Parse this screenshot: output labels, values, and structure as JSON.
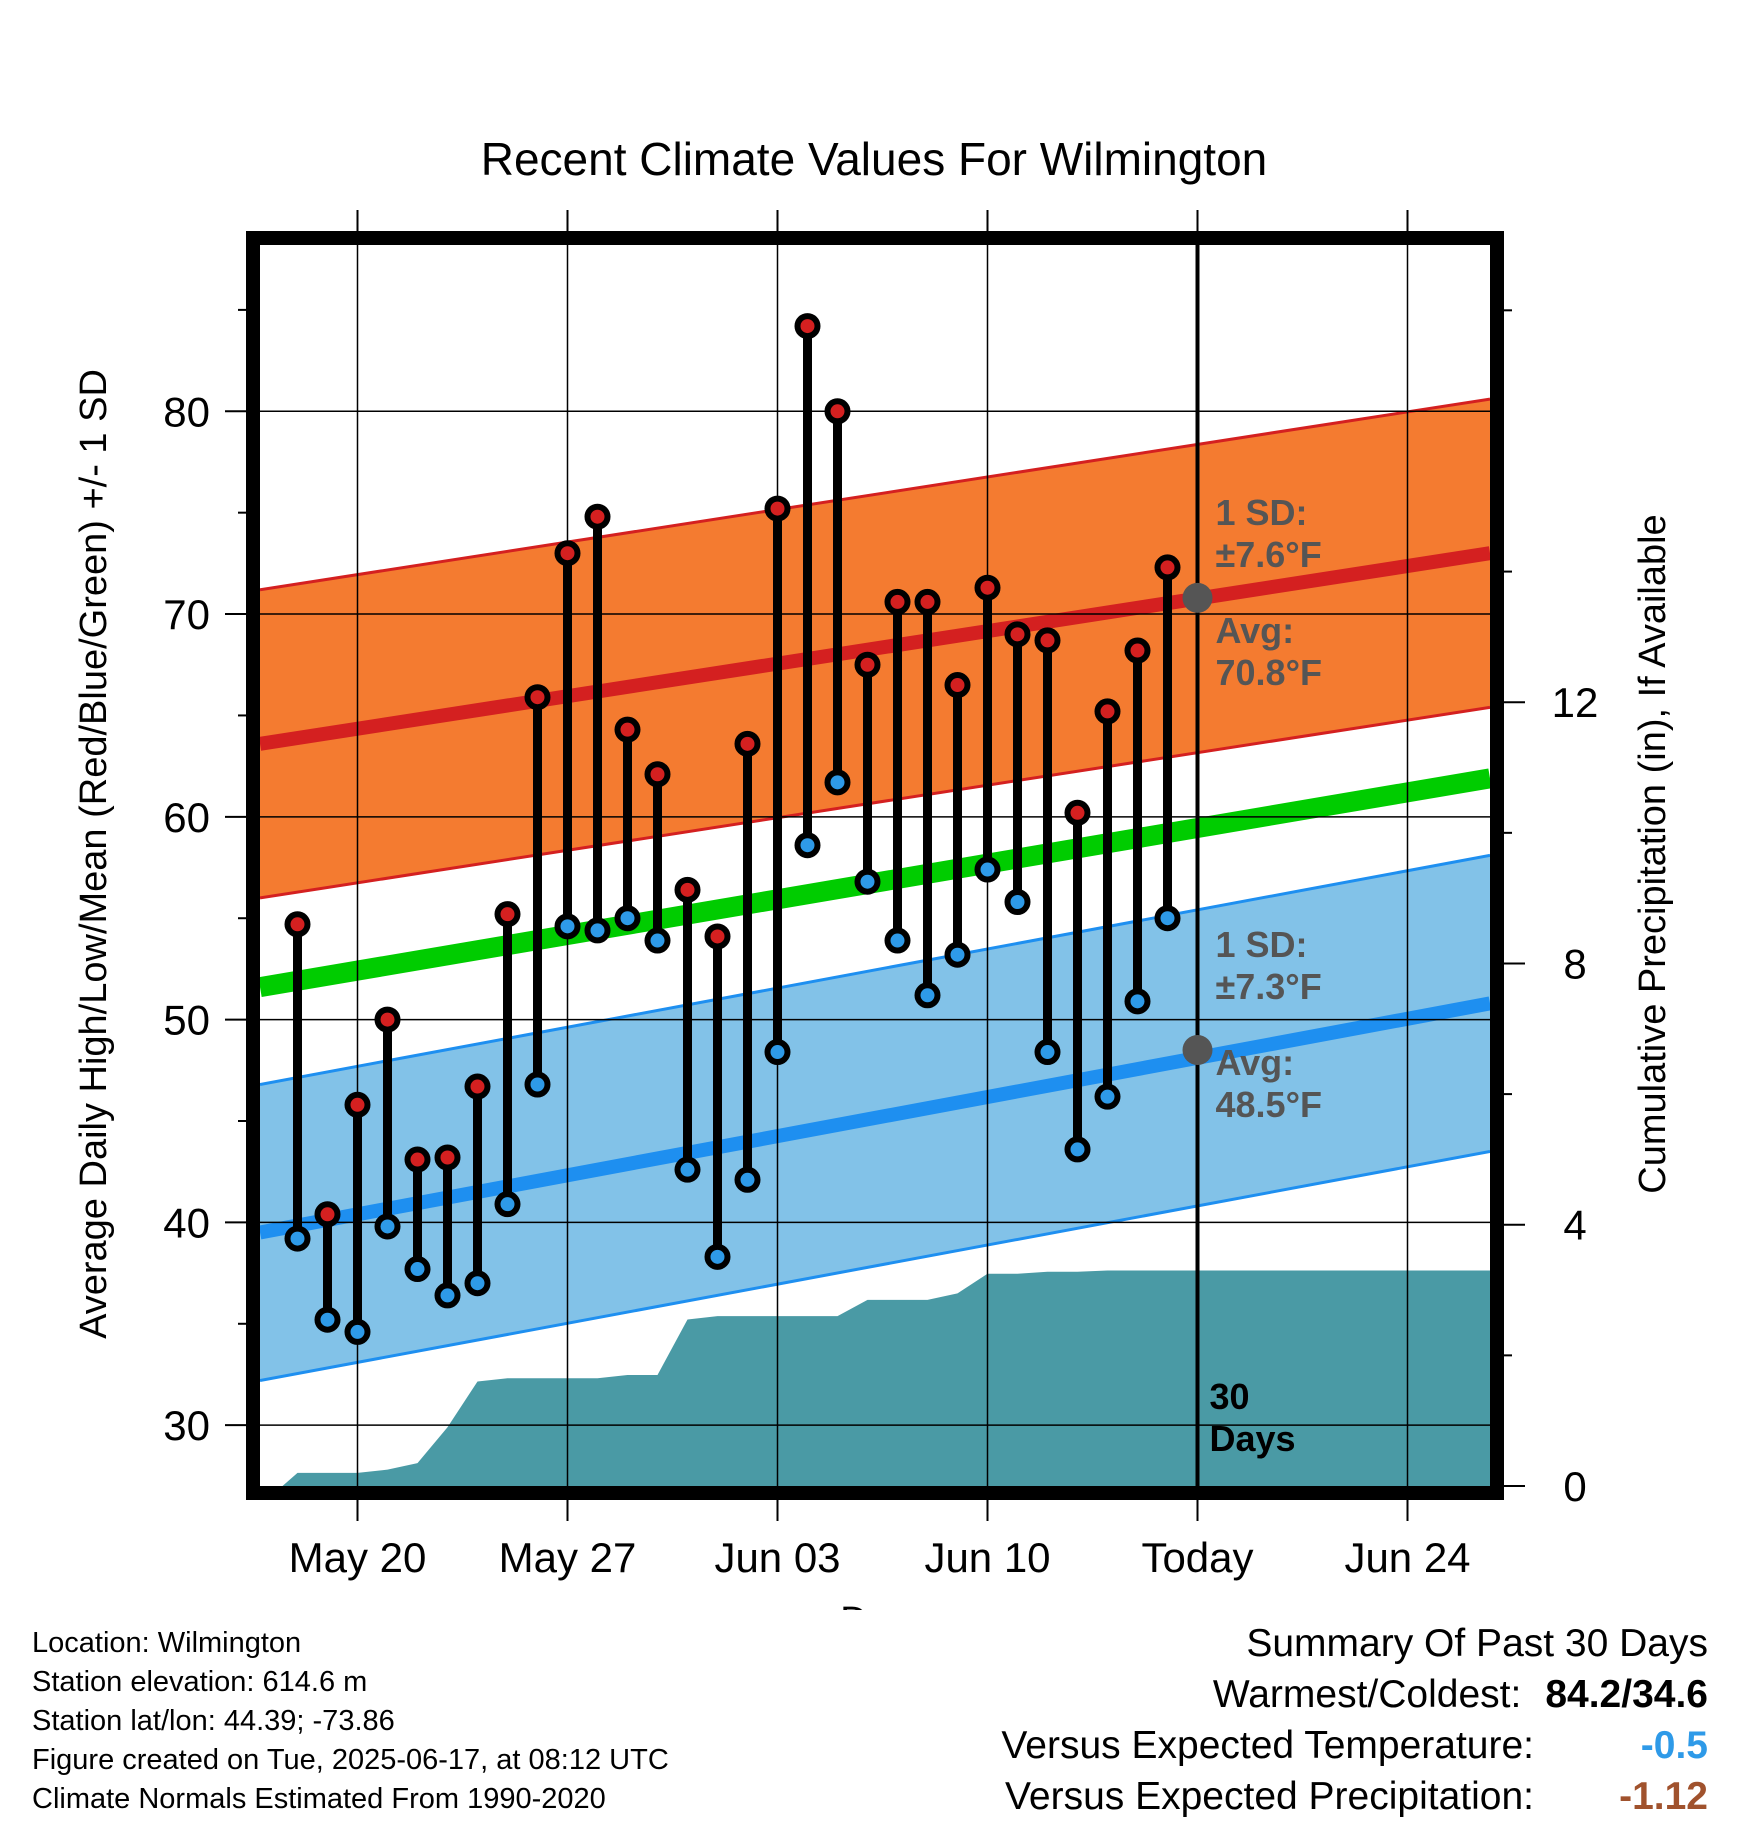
{
  "chart_data": {
    "type": "line",
    "title": "Recent Climate Values For Wilmington",
    "xlabel": "Day",
    "ylabel": "Average Daily High/Low/Mean (Red/Blue/Green) +/- 1 SD",
    "ylabel_right": "Cumulative Precipitation (in), If Available",
    "x_ticks": [
      {
        "day": 20,
        "label": "May 20"
      },
      {
        "day": 27,
        "label": "May 27"
      },
      {
        "day": 34,
        "label": "Jun 03"
      },
      {
        "day": 41,
        "label": "Jun 10"
      },
      {
        "day": 48,
        "label": "Today"
      },
      {
        "day": 55,
        "label": "Jun 24"
      }
    ],
    "xlim": [
      16.75,
      57.75
    ],
    "ylim": [
      27,
      88.2
    ],
    "y_ticks": [
      30,
      40,
      50,
      60,
      70,
      80
    ],
    "y2lim": [
      0,
      19
    ],
    "y2_ticks": [
      0,
      4,
      8,
      12
    ],
    "grid": true,
    "today_day": 48,
    "days_label": "30 Days",
    "normal_high": {
      "x": [
        16.75,
        57.75
      ],
      "y": [
        63.6,
        73.0
      ],
      "sd": 7.6,
      "sd_label": "1 SD:",
      "sd_value": "±7.6°F",
      "avg_label": "Avg:",
      "avg_value": "70.8°F",
      "today_avg": 70.8
    },
    "normal_low": {
      "x": [
        16.75,
        57.75
      ],
      "y": [
        39.5,
        50.8
      ],
      "sd": 7.3,
      "sd_label": "1 SD:",
      "sd_value": "±7.3°F",
      "avg_label": "Avg:",
      "avg_value": "48.5°F",
      "today_avg": 48.5
    },
    "normal_mean": {
      "x": [
        16.75,
        57.75
      ],
      "y": [
        51.6,
        61.9
      ]
    },
    "daily_days": [
      18,
      19,
      20,
      21,
      22,
      23,
      24,
      25,
      26,
      27,
      28,
      29,
      30,
      31,
      32,
      33,
      34,
      35,
      36,
      37,
      38,
      39,
      40,
      41,
      42,
      43,
      44,
      45,
      46,
      47
    ],
    "daily_highs": [
      54.7,
      40.4,
      45.8,
      50.0,
      43.1,
      43.2,
      46.7,
      55.2,
      65.9,
      73.0,
      74.8,
      64.3,
      62.1,
      56.4,
      54.1,
      63.6,
      75.2,
      84.2,
      80.0,
      67.5,
      70.6,
      70.6,
      66.5,
      71.3,
      69.0,
      68.7,
      60.2,
      65.2,
      68.2,
      72.3
    ],
    "daily_lows": [
      39.2,
      35.2,
      34.6,
      39.8,
      37.7,
      36.4,
      37.0,
      40.9,
      46.8,
      54.6,
      54.4,
      55.0,
      53.9,
      42.6,
      38.3,
      42.1,
      48.4,
      58.6,
      61.7,
      56.8,
      53.9,
      51.2,
      53.2,
      57.4,
      55.8,
      48.4,
      43.6,
      46.2,
      50.9,
      55.0
    ],
    "precip": {
      "x": [
        16.75,
        17.5,
        18,
        19,
        20,
        21,
        22,
        23,
        24,
        25,
        26,
        27,
        28,
        29,
        30,
        31,
        32,
        33,
        34,
        35,
        36,
        37,
        38,
        39,
        40,
        41,
        42,
        43,
        44,
        45,
        46,
        47,
        48,
        57.75
      ],
      "y": [
        0,
        0,
        0.2,
        0.2,
        0.2,
        0.25,
        0.35,
        0.9,
        1.6,
        1.65,
        1.65,
        1.65,
        1.65,
        1.7,
        1.7,
        2.55,
        2.6,
        2.6,
        2.6,
        2.6,
        2.6,
        2.85,
        2.85,
        2.85,
        2.95,
        3.25,
        3.25,
        3.28,
        3.28,
        3.3,
        3.3,
        3.3,
        3.3,
        3.3
      ]
    },
    "colors": {
      "high_band": "#f47b30",
      "high_line": "#d42020",
      "low_band": "#82c2e8",
      "low_line": "#1e8ff0",
      "mean_line": "#00cc00",
      "precip": "#4a9aa5",
      "high_dot": "#d42020",
      "low_dot": "#2e9ae8",
      "avg_dot": "#555555"
    }
  },
  "metadata": {
    "location": "Location: Wilmington",
    "elevation": "Station elevation: 614.6 m",
    "latlon": "Station lat/lon: 44.39; -73.86",
    "created": "Figure created on Tue, 2025-06-17, at 08:12 UTC",
    "normals": "Climate Normals Estimated From 1990-2020"
  },
  "summary": {
    "title": "Summary Of Past 30 Days",
    "warm_cold_label": "Warmest/Coldest:",
    "warm_cold_value": "84.2/34.6",
    "temp_label": "Versus Expected Temperature:",
    "temp_value": "-0.5",
    "temp_color": "#2e9ae8",
    "precip_label": "Versus Expected Precipitation:",
    "precip_value": "-1.12",
    "precip_color": "#a0522d"
  }
}
